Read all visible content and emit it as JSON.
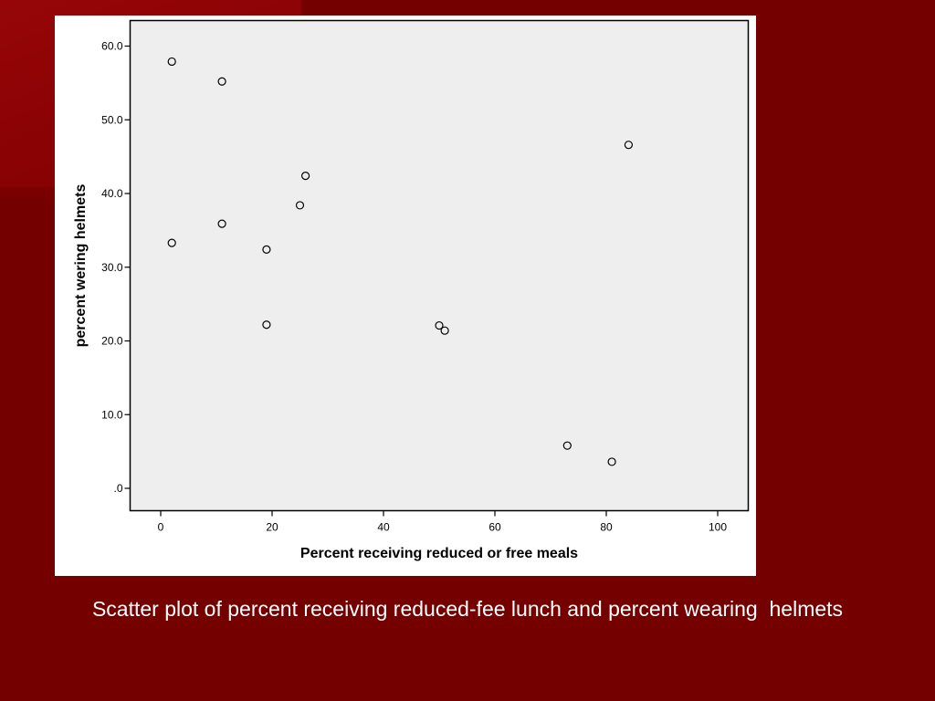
{
  "slide": {
    "caption": "Scatter plot of percent receiving reduced-fee lunch and percent wearing  helmets"
  },
  "colors": {
    "slide_background": "#740000",
    "plot_background": "#eeeeee",
    "marker_stroke": "#000000"
  },
  "chart_data": {
    "type": "scatter",
    "xlabel": "Percent receiving reduced or free meals",
    "ylabel": "percent wering helmets",
    "xlim": [
      0,
      100
    ],
    "ylim": [
      0,
      60
    ],
    "x_ticks": [
      0,
      20,
      40,
      60,
      80,
      100
    ],
    "x_tick_labels": [
      "0",
      "20",
      "40",
      "60",
      "80",
      "100"
    ],
    "y_ticks": [
      0,
      10,
      20,
      30,
      40,
      50,
      60
    ],
    "y_tick_labels": [
      ".0",
      "10.0",
      "20.0",
      "30.0",
      "40.0",
      "50.0",
      "60.0"
    ],
    "grid": false,
    "marker": "open-circle",
    "points": [
      {
        "x": 2,
        "y": 57.9
      },
      {
        "x": 11,
        "y": 55.2
      },
      {
        "x": 84,
        "y": 46.6
      },
      {
        "x": 26,
        "y": 42.4
      },
      {
        "x": 25,
        "y": 38.4
      },
      {
        "x": 11,
        "y": 35.9
      },
      {
        "x": 2,
        "y": 33.3
      },
      {
        "x": 19,
        "y": 32.4
      },
      {
        "x": 19,
        "y": 22.2
      },
      {
        "x": 50,
        "y": 22.1
      },
      {
        "x": 51,
        "y": 21.4
      },
      {
        "x": 73,
        "y": 5.8
      },
      {
        "x": 81,
        "y": 3.6
      }
    ]
  }
}
